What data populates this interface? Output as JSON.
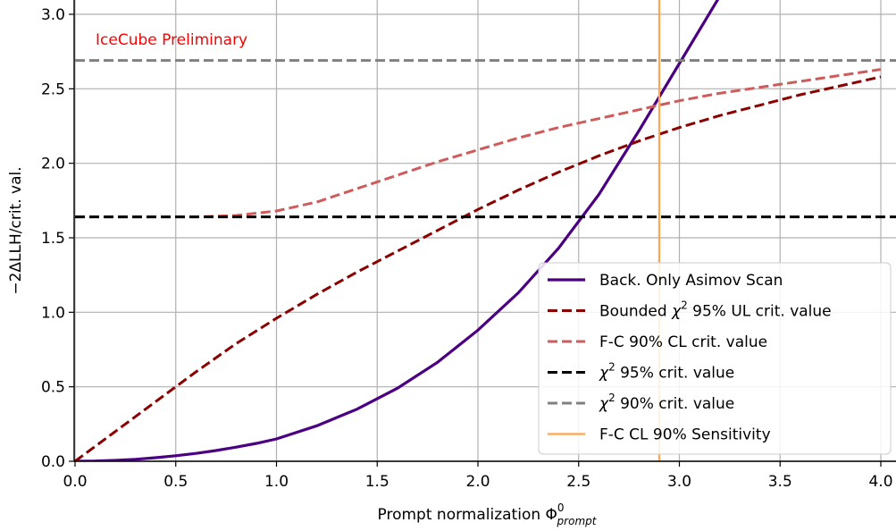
{
  "chart_data": {
    "type": "line",
    "title": "",
    "xlabel": "Prompt normalization Φ",
    "xlabel_sup": "0",
    "xlabel_sub": "prompt",
    "ylabel": "−2ΔLLH/crit. val.",
    "xlim": [
      0.0,
      4.08
    ],
    "ylim": [
      0.0,
      3.05
    ],
    "x_ticks": [
      0.0,
      0.5,
      1.0,
      1.5,
      2.0,
      2.5,
      3.0,
      3.5,
      4.0
    ],
    "x_tick_labels": [
      "0.0",
      "0.5",
      "1.0",
      "1.5",
      "2.0",
      "2.5",
      "3.0",
      "3.5",
      "4.0"
    ],
    "y_ticks": [
      0.0,
      0.5,
      1.0,
      1.5,
      2.0,
      2.5,
      3.0
    ],
    "y_tick_labels": [
      "0.0",
      "0.5",
      "1.0",
      "1.5",
      "2.0",
      "2.5",
      "3.0"
    ],
    "grid": true,
    "legend_position": "lower-right",
    "annotation": {
      "text": "IceCube Preliminary",
      "color": "#ff0000"
    },
    "series": [
      {
        "name": "Back. Only Asimov Scan",
        "style": "solid",
        "color": "#4b0082",
        "width": 3.2,
        "x": [
          0.0,
          0.1,
          0.2,
          0.3,
          0.4,
          0.5,
          0.6,
          0.7,
          0.8,
          0.9,
          1.0,
          1.2,
          1.4,
          1.6,
          1.8,
          2.0,
          2.2,
          2.4,
          2.6,
          2.8,
          3.0,
          3.2
        ],
        "y": [
          0.0,
          0.0015,
          0.006,
          0.013,
          0.024,
          0.037,
          0.053,
          0.072,
          0.095,
          0.12,
          0.15,
          0.238,
          0.35,
          0.49,
          0.665,
          0.88,
          1.13,
          1.43,
          1.79,
          2.22,
          2.67,
          3.12
        ]
      },
      {
        "name": "Bounded χ² 95% UL crit. value",
        "name_parts": [
          "Bounded ",
          "χ",
          "2",
          " 95% UL crit. value"
        ],
        "style": "dashed",
        "color": "#8b0000",
        "width": 3.0,
        "x": [
          0.0,
          0.2,
          0.4,
          0.6,
          0.8,
          1.0,
          1.2,
          1.4,
          1.6,
          1.8,
          2.0,
          2.2,
          2.4,
          2.6,
          2.8,
          3.0,
          3.2,
          3.4,
          3.6,
          3.8,
          4.0
        ],
        "y": [
          0.0,
          0.2,
          0.4,
          0.6,
          0.79,
          0.96,
          1.12,
          1.27,
          1.41,
          1.55,
          1.69,
          1.82,
          1.94,
          2.05,
          2.15,
          2.24,
          2.32,
          2.39,
          2.46,
          2.52,
          2.58
        ]
      },
      {
        "name": "F-C 90% CL crit. value",
        "style": "dashed",
        "color": "#cd5c5c",
        "width": 3.0,
        "x": [
          0.0,
          0.2,
          0.4,
          0.6,
          0.8,
          1.0,
          1.2,
          1.4,
          1.6,
          1.8,
          2.0,
          2.2,
          2.4,
          2.6,
          2.8,
          3.0,
          3.2,
          3.4,
          3.6,
          3.8,
          4.0
        ],
        "y": [
          1.64,
          1.64,
          1.64,
          1.64,
          1.65,
          1.68,
          1.74,
          1.83,
          1.92,
          2.01,
          2.09,
          2.17,
          2.24,
          2.3,
          2.36,
          2.42,
          2.47,
          2.51,
          2.55,
          2.59,
          2.63
        ]
      },
      {
        "name": "χ² 95% crit. value",
        "name_parts": [
          "",
          "χ",
          "2",
          " 95% crit. value"
        ],
        "style": "dashed",
        "color": "#000000",
        "width": 3.0,
        "x": [
          0.0,
          4.08
        ],
        "y": [
          1.64,
          1.64
        ]
      },
      {
        "name": "χ² 90% crit. value",
        "name_parts": [
          "",
          "χ",
          "2",
          " 90% crit. value"
        ],
        "style": "dashed",
        "color": "#808080",
        "width": 3.0,
        "x": [
          0.0,
          4.08
        ],
        "y": [
          2.69,
          2.69
        ]
      },
      {
        "name": "F-C CL 90% Sensitivity",
        "style": "solid",
        "color": "#ffa54f",
        "width": 2.2,
        "orientation": "vertical",
        "x_value": 2.9
      }
    ]
  }
}
